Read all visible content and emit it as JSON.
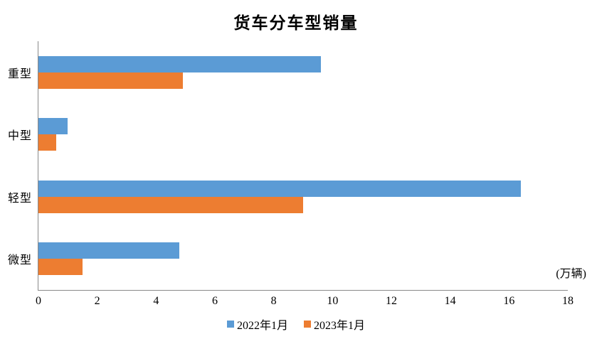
{
  "title": "货车分车型销量",
  "unit_label": "(万辆)",
  "colors": {
    "series_2022": "#5B9BD5",
    "series_2023": "#ED7D31",
    "axis_line": "#898989"
  },
  "legend": {
    "items": [
      {
        "label": "2022年1月",
        "color": "#5B9BD5"
      },
      {
        "label": "2023年1月",
        "color": "#ED7D31"
      }
    ]
  },
  "chart_data": {
    "type": "bar",
    "orientation": "horizontal",
    "title": "货车分车型销量",
    "categories": [
      "重型",
      "中型",
      "轻型",
      "微型"
    ],
    "series": [
      {
        "name": "2022年1月",
        "color": "#5B9BD5",
        "values": [
          9.6,
          1.0,
          16.4,
          4.8
        ]
      },
      {
        "name": "2023年1月",
        "color": "#ED7D31",
        "values": [
          4.9,
          0.6,
          9.0,
          1.5
        ]
      }
    ],
    "xlabel": "(万辆)",
    "xlim": [
      0,
      18
    ],
    "xticks": [
      0,
      2,
      4,
      6,
      8,
      10,
      12,
      14,
      16,
      18
    ],
    "grid": false,
    "legend_position": "bottom"
  }
}
